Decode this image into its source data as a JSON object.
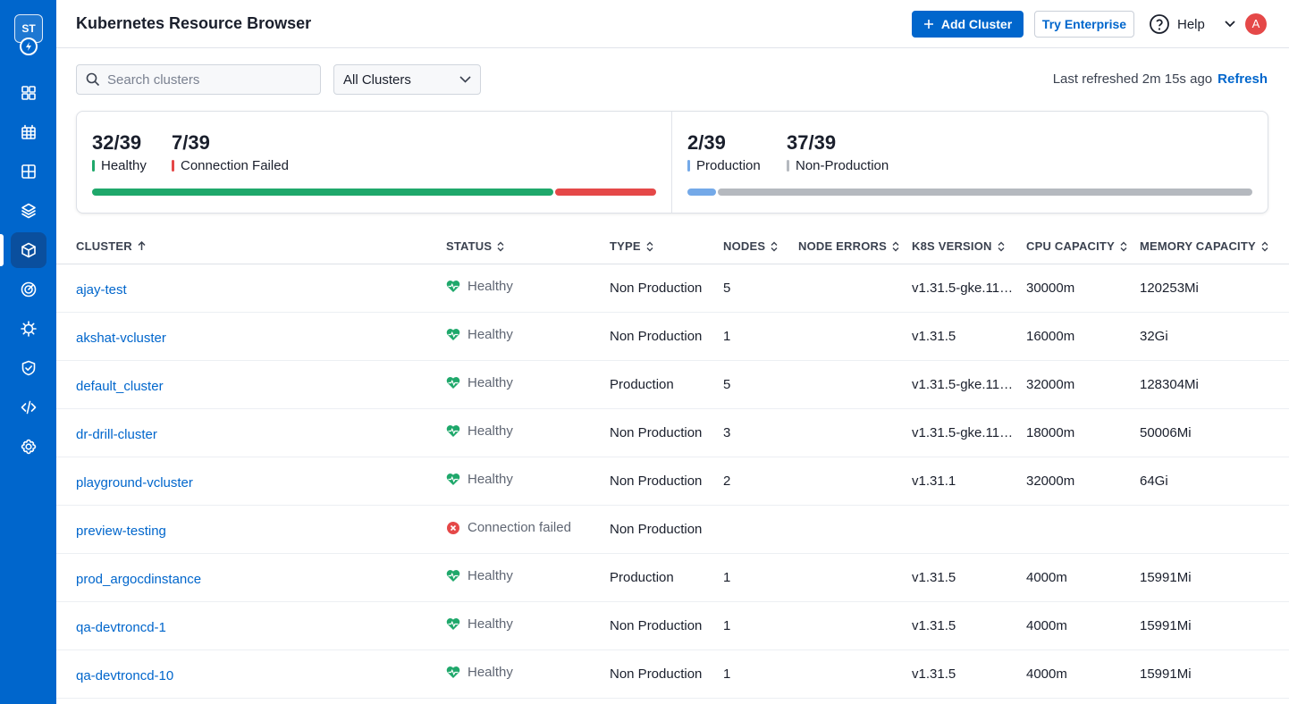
{
  "sidebar": {
    "logo_text": "ST",
    "items": [
      {
        "icon": "dashboard-grid-icon"
      },
      {
        "icon": "table-icon"
      },
      {
        "icon": "layout-grid-icon"
      },
      {
        "icon": "layers-icon"
      },
      {
        "icon": "cube-icon",
        "active": true
      },
      {
        "icon": "target-icon"
      },
      {
        "icon": "bug-icon"
      },
      {
        "icon": "shield-check-icon"
      },
      {
        "icon": "code-icon"
      },
      {
        "icon": "settings-gear-icon"
      }
    ]
  },
  "header": {
    "title": "Kubernetes Resource Browser",
    "add_cluster_label": "Add Cluster",
    "try_enterprise_label": "Try Enterprise",
    "help_label": "Help",
    "avatar_initial": "A"
  },
  "toolbar": {
    "search_placeholder": "Search clusters",
    "filter_selected": "All Clusters",
    "last_refreshed": "Last refreshed 2m 15s ago",
    "refresh_label": "Refresh"
  },
  "stats": {
    "health": {
      "healthy_value": "32/39",
      "healthy_label": "Healthy",
      "failed_value": "7/39",
      "failed_label": "Connection Failed",
      "healthy_fraction": 0.8205,
      "failed_fraction": 0.1795
    },
    "environment": {
      "production_value": "2/39",
      "production_label": "Production",
      "nonprod_value": "37/39",
      "nonprod_label": "Non-Production",
      "production_fraction": 0.0513,
      "nonprod_fraction": 0.9487
    },
    "colors": {
      "healthy": "#1fa86b",
      "failed": "#e54848",
      "production": "#74a9e8",
      "nonprod": "#b5b9bf"
    }
  },
  "table": {
    "columns": [
      "CLUSTER",
      "STATUS",
      "TYPE",
      "NODES",
      "NODE ERRORS",
      "K8S VERSION",
      "CPU CAPACITY",
      "MEMORY CAPACITY"
    ],
    "rows": [
      {
        "cluster": "ajay-test",
        "status": "Healthy",
        "type": "Non Production",
        "nodes": "5",
        "node_errors": "",
        "version": "v1.31.5-gke.11…",
        "cpu": "30000m",
        "memory": "120253Mi"
      },
      {
        "cluster": "akshat-vcluster",
        "status": "Healthy",
        "type": "Non Production",
        "nodes": "1",
        "node_errors": "",
        "version": "v1.31.5",
        "cpu": "16000m",
        "memory": "32Gi"
      },
      {
        "cluster": "default_cluster",
        "status": "Healthy",
        "type": "Production",
        "nodes": "5",
        "node_errors": "",
        "version": "v1.31.5-gke.11…",
        "cpu": "32000m",
        "memory": "128304Mi"
      },
      {
        "cluster": "dr-drill-cluster",
        "status": "Healthy",
        "type": "Non Production",
        "nodes": "3",
        "node_errors": "",
        "version": "v1.31.5-gke.11…",
        "cpu": "18000m",
        "memory": "50006Mi"
      },
      {
        "cluster": "playground-vcluster",
        "status": "Healthy",
        "type": "Non Production",
        "nodes": "2",
        "node_errors": "",
        "version": "v1.31.1",
        "cpu": "32000m",
        "memory": "64Gi"
      },
      {
        "cluster": "preview-testing",
        "status": "Connection failed",
        "type": "Non Production",
        "nodes": "",
        "node_errors": "",
        "version": "",
        "cpu": "",
        "memory": ""
      },
      {
        "cluster": "prod_argocdinstance",
        "status": "Healthy",
        "type": "Production",
        "nodes": "1",
        "node_errors": "",
        "version": "v1.31.5",
        "cpu": "4000m",
        "memory": "15991Mi"
      },
      {
        "cluster": "qa-devtroncd-1",
        "status": "Healthy",
        "type": "Non Production",
        "nodes": "1",
        "node_errors": "",
        "version": "v1.31.5",
        "cpu": "4000m",
        "memory": "15991Mi"
      },
      {
        "cluster": "qa-devtroncd-10",
        "status": "Healthy",
        "type": "Non Production",
        "nodes": "1",
        "node_errors": "",
        "version": "v1.31.5",
        "cpu": "4000m",
        "memory": "15991Mi"
      }
    ]
  }
}
